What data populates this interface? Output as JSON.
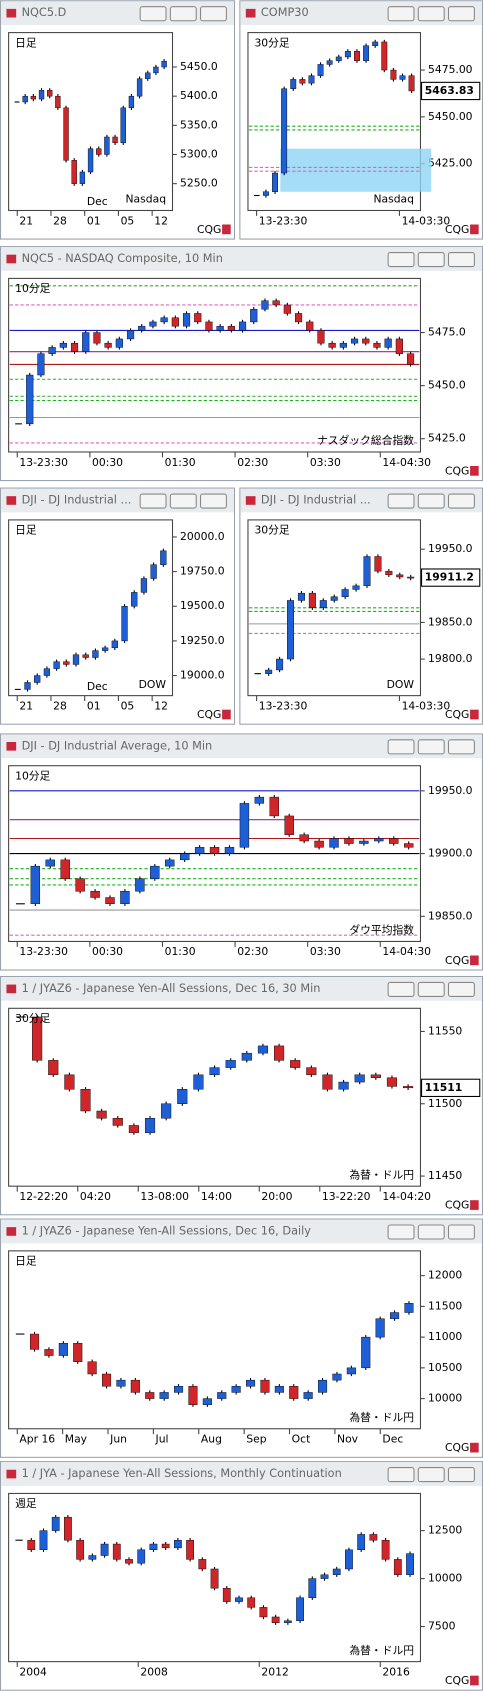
{
  "logo": "CQG",
  "up_color": "#1f5fd6",
  "down_color": "#d0262a",
  "windows": [
    {
      "title": "NQC5.D",
      "label": "日足",
      "label_color": "#1a1adb",
      "note": "Nasdaq",
      "note_color": "#1a1adb",
      "ylim": [
        5204,
        5509
      ],
      "yticks": [
        {
          "value": 5450,
          "label": "5450.0"
        },
        {
          "value": 5400,
          "label": "5400.0"
        },
        {
          "value": 5350,
          "label": "5350.0"
        },
        {
          "value": 5300,
          "label": "5300.0"
        },
        {
          "value": 5250,
          "label": "5250.0"
        }
      ],
      "x_labels": [
        "21",
        "28",
        "01",
        "05",
        "12"
      ],
      "x_sublabel": "Dec",
      "values": [
        5390,
        5400,
        5395,
        5410,
        5400,
        5380,
        5290,
        5250,
        5270,
        5310,
        5300,
        5330,
        5320,
        5380,
        5400,
        5430,
        5440,
        5450,
        5460
      ]
    },
    {
      "title": "COMP30",
      "label": "30分足",
      "label_color": "#1a1adb",
      "note": "Nasdaq",
      "note_color": "#1a1adb",
      "ylim": [
        5400,
        5495
      ],
      "yticks": [
        {
          "value": 5475,
          "label": "5475.00"
        },
        {
          "value": 5450,
          "label": "5450.00"
        },
        {
          "value": 5425,
          "label": "5425.00"
        }
      ],
      "price_tag": 5463.83,
      "zone": [
        5410,
        5433
      ],
      "levels": [
        {
          "value": 5445,
          "color": "#22b022"
        },
        {
          "value": 5443,
          "color": "#22b022"
        },
        {
          "value": 5423,
          "color": "#e060c0"
        },
        {
          "value": 5421,
          "color": "#e060c0"
        }
      ],
      "x_labels": [
        "13-23:30",
        "14-03:30"
      ],
      "values": [
        5408,
        5410,
        5420,
        5465,
        5470,
        5468,
        5472,
        5478,
        5480,
        5482,
        5485,
        5480,
        5488,
        5490,
        5475,
        5470,
        5472,
        5463.83
      ]
    },
    {
      "title": "NQC5 - NASDAQ Composite, 10 Min",
      "label": "10分足",
      "label_color": "#1a1adb",
      "note": "ナスダック総合指数",
      "note_color": "#1a1adb",
      "ylim": [
        5418.75,
        5500.5
      ],
      "yticks": [
        {
          "value": 5475,
          "label": "5475.0"
        },
        {
          "value": 5450,
          "label": "5450.0"
        },
        {
          "value": 5425,
          "label": "5425.0"
        }
      ],
      "levels": [
        {
          "value": 5497,
          "color": "#22b022"
        },
        {
          "value": 5488,
          "color": "#e060c0"
        },
        {
          "value": 5476,
          "color": "#1a1acc"
        },
        {
          "value": 5466,
          "color": "#a0209a"
        },
        {
          "value": 5460,
          "color": "#b01818"
        },
        {
          "value": 5453,
          "color": "#22b022"
        },
        {
          "value": 5445,
          "color": "#22b022"
        },
        {
          "value": 5443,
          "color": "#22b022"
        },
        {
          "value": 5435,
          "color": "#999999"
        },
        {
          "value": 5423,
          "color": "#e060c0"
        }
      ],
      "x_labels": [
        "13-23:30",
        "00:30",
        "01:30",
        "02:30",
        "03:30",
        "14-04:30"
      ],
      "values": [
        5432,
        5455,
        5465,
        5468,
        5470,
        5466,
        5475,
        5470,
        5468,
        5472,
        5476,
        5478,
        5480,
        5482,
        5478,
        5484,
        5480,
        5476,
        5478,
        5476,
        5480,
        5486,
        5490,
        5488,
        5484,
        5480,
        5476,
        5470,
        5468,
        5470,
        5472,
        5470,
        5468,
        5472,
        5465,
        5460
      ]
    },
    {
      "title": "DJI - DJ Industrial ...",
      "label": "日足",
      "label_color": "#e02020",
      "note": "DOW",
      "note_color": "#e02020",
      "ylim": [
        18855,
        20123
      ],
      "yticks": [
        {
          "value": 20000,
          "label": "20000.0"
        },
        {
          "value": 19750,
          "label": "19750.0"
        },
        {
          "value": 19500,
          "label": "19500.0"
        },
        {
          "value": 19250,
          "label": "19250.0"
        },
        {
          "value": 19000,
          "label": "19000.0"
        }
      ],
      "x_labels": [
        "21",
        "28",
        "01",
        "05",
        "12"
      ],
      "x_sublabel": "Dec",
      "values": [
        18900,
        18950,
        19000,
        19050,
        19100,
        19080,
        19150,
        19130,
        19180,
        19200,
        19250,
        19500,
        19600,
        19700,
        19800,
        19900
      ]
    },
    {
      "title": "DJI - DJ Industrial ...",
      "label": "30分足",
      "label_color": "#e02020",
      "note": "DOW",
      "note_color": "#e02020",
      "ylim": [
        19750,
        19990
      ],
      "yticks": [
        {
          "value": 19950,
          "label": "19950.0"
        },
        {
          "value": 19850,
          "label": "19850.0"
        },
        {
          "value": 19800,
          "label": "19800.0"
        }
      ],
      "price_tag": 19911.2,
      "levels": [
        {
          "value": 19870,
          "color": "#22b022"
        },
        {
          "value": 19865,
          "color": "#22b022"
        },
        {
          "value": 19848,
          "color": "#999999"
        },
        {
          "value": 19835,
          "color": "#e060c0"
        }
      ],
      "x_labels": [
        "13-23:30",
        "14-03:30"
      ],
      "values": [
        19780,
        19785,
        19800,
        19880,
        19890,
        19870,
        19880,
        19885,
        19895,
        19900,
        19940,
        19920,
        19915,
        19912,
        19911.2
      ]
    },
    {
      "title": "DJI - DJ Industrial Average, 10 Min",
      "label": "10分足",
      "label_color": "#e02020",
      "note": "ダウ平均指数",
      "note_color": "#e02020",
      "ylim": [
        19830,
        19970
      ],
      "yticks": [
        {
          "value": 19950,
          "label": "19950.0"
        },
        {
          "value": 19900,
          "label": "19900.0"
        },
        {
          "value": 19850,
          "label": "19850.0"
        }
      ],
      "levels": [
        {
          "value": 19950,
          "color": "#1a1acc"
        },
        {
          "value": 19927,
          "color": "#a0209a"
        },
        {
          "value": 19912,
          "color": "#b01818"
        },
        {
          "value": 19900,
          "color": "#000000"
        },
        {
          "value": 19888,
          "color": "#22b022"
        },
        {
          "value": 19880,
          "color": "#22b022"
        },
        {
          "value": 19875,
          "color": "#22b022"
        },
        {
          "value": 19855,
          "color": "#999999"
        },
        {
          "value": 19835,
          "color": "#e060c0"
        }
      ],
      "x_labels": [
        "13-23:30",
        "00:30",
        "01:30",
        "02:30",
        "03:30",
        "14-04:30"
      ],
      "values": [
        19860,
        19890,
        19895,
        19880,
        19870,
        19865,
        19860,
        19870,
        19880,
        19890,
        19895,
        19900,
        19905,
        19900,
        19905,
        19940,
        19945,
        19930,
        19915,
        19910,
        19905,
        19912,
        19908,
        19910,
        19912,
        19908,
        19905
      ]
    },
    {
      "title": "1 / JYAZ6 - Japanese Yen-All Sessions, Dec 16, 30 Min",
      "label": "30分足",
      "label_color": "#1a9a1a",
      "note": "為替・ドル円",
      "note_color": "#1a9a1a",
      "ylim": [
        11443,
        11566
      ],
      "yticks": [
        11550,
        11500,
        11450
      ],
      "price_tag": 11511,
      "x_labels": [
        "12-22:20",
        "04:20",
        "13-08:00",
        "14:00",
        "20:00",
        "13-22:20",
        "14-04:20"
      ],
      "values": [
        11560,
        11530,
        11520,
        11510,
        11495,
        11490,
        11485,
        11480,
        11490,
        11500,
        11510,
        11520,
        11525,
        11530,
        11535,
        11540,
        11530,
        11525,
        11520,
        11510,
        11515,
        11520,
        11518,
        11512,
        11511
      ]
    },
    {
      "title": "1 / JYAZ6 - Japanese Yen-All Sessions, Dec 16, Daily",
      "label": "日足",
      "label_color": "#1a9a1a",
      "note": "為替・ドル円",
      "note_color": "#1a9a1a",
      "ylim": [
        9509,
        12403
      ],
      "yticks": [
        12000,
        11500,
        11000,
        10500,
        10000
      ],
      "x_labels": [
        "Apr 16",
        "May",
        "Jun",
        "Jul",
        "Aug",
        "Sep",
        "Oct",
        "Nov",
        "Dec"
      ],
      "values": [
        11050,
        10800,
        10700,
        10900,
        10600,
        10400,
        10200,
        10300,
        10100,
        10000,
        10100,
        10200,
        9900,
        10000,
        10100,
        10200,
        10300,
        10100,
        10200,
        10000,
        10100,
        10300,
        10400,
        10500,
        11000,
        11300,
        11400,
        11550
      ]
    },
    {
      "title": "1 / JYA - Japanese Yen-All Sessions, Monthly Continuation",
      "label": "週足",
      "label_color": "#1a9a1a",
      "note": "為替・ドル円",
      "note_color": "#1a9a1a",
      "ylim": [
        5672,
        14435
      ],
      "yticks": [
        12500,
        10000,
        7500
      ],
      "x_labels": [
        "2004",
        "2008",
        "2012",
        "2016"
      ],
      "values": [
        12000,
        11500,
        12500,
        13200,
        12000,
        11000,
        11200,
        11800,
        11000,
        10800,
        11500,
        11800,
        11600,
        12000,
        11000,
        10500,
        9500,
        8800,
        9000,
        8500,
        8000,
        7700,
        7800,
        9000,
        10000,
        10200,
        10500,
        11500,
        12300,
        12000,
        11000,
        10200,
        11300
      ]
    }
  ]
}
